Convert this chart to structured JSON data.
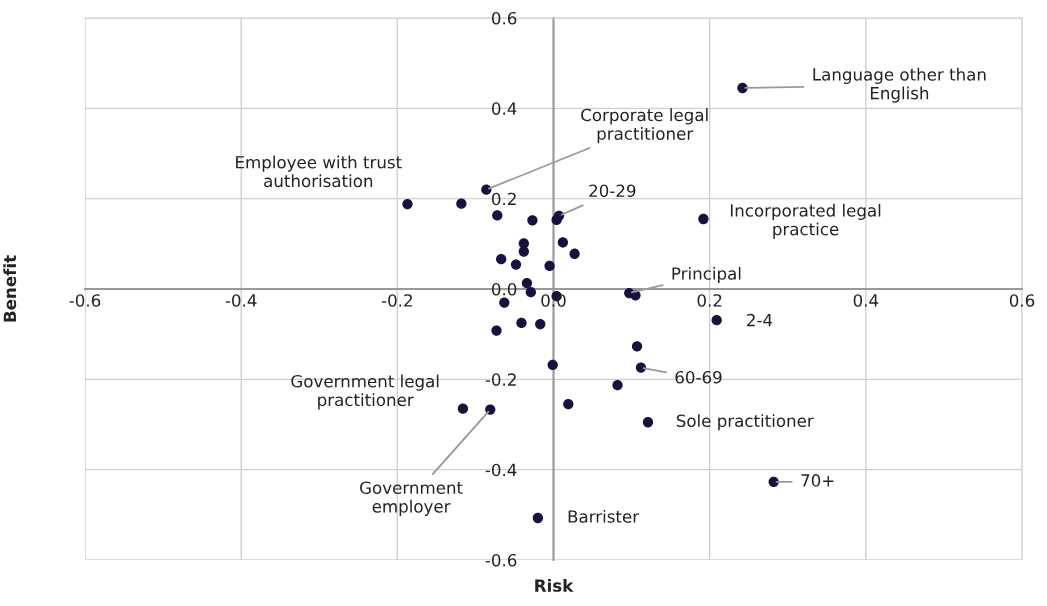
{
  "chart_data": {
    "type": "scatter",
    "xlabel": "Risk",
    "ylabel": "Benefit",
    "xlim": [
      -0.6,
      0.6
    ],
    "ylim": [
      -0.6,
      0.6
    ],
    "xticks": [
      -0.6,
      -0.4,
      -0.2,
      {
        "value": 0,
        "label": "0.0"
      },
      0.2,
      0.4,
      0.6
    ],
    "yticks": [
      -0.6,
      -0.4,
      -0.2,
      {
        "value": 0,
        "label": "0.0"
      },
      0.2,
      0.4,
      0.6
    ],
    "grid": true,
    "marker": "circle",
    "series": [
      {
        "color": "#1a1040",
        "x": [
          -0.086,
          -0.187,
          -0.118,
          -0.072,
          -0.027,
          0.007,
          0.004,
          0.012,
          0.027,
          -0.038,
          -0.038,
          -0.067,
          -0.048,
          -0.005,
          -0.034,
          -0.029,
          0.004,
          -0.063,
          0.097,
          0.105,
          -0.073,
          -0.041,
          -0.017,
          0.107,
          -0.001,
          0.112,
          0.082,
          0.019,
          0.121,
          -0.116,
          -0.081,
          -0.02,
          0.242,
          0.192,
          0.209,
          0.282
        ],
        "values": [
          0.22,
          0.188,
          0.189,
          0.163,
          0.152,
          0.162,
          0.153,
          0.103,
          0.078,
          0.101,
          0.083,
          0.066,
          0.054,
          0.051,
          0.013,
          -0.007,
          -0.016,
          -0.03,
          -0.009,
          -0.014,
          -0.092,
          -0.075,
          -0.078,
          -0.127,
          -0.168,
          -0.174,
          -0.213,
          -0.255,
          -0.295,
          -0.265,
          -0.267,
          -0.507,
          0.445,
          0.155,
          -0.069,
          -0.427
        ]
      }
    ],
    "annotations": [
      {
        "text": "Language other than\nEnglish",
        "x": 0.242,
        "y": 0.445
      },
      {
        "text": "Corporate legal\npractitioner",
        "x": -0.086,
        "y": 0.22
      },
      "Employee with trust\nauthorisation",
      {
        "text": "20-29",
        "x": 0.007,
        "y": 0.162
      },
      "Incorporated legal\npractice",
      {
        "text": "Principal",
        "x": 0.097,
        "y": -0.009
      },
      {
        "text": "2-4",
        "x": 0.209,
        "y": -0.069
      },
      {
        "text": "60-69",
        "x": 0.112,
        "y": -0.174
      },
      "Government legal\npractitioner",
      {
        "text": "Sole practitioner",
        "x": 0.121,
        "y": -0.295
      },
      {
        "text": "Government\nemployer",
        "x": -0.081,
        "y": -0.267
      },
      {
        "text": "70+",
        "x": 0.282,
        "y": -0.427
      },
      {
        "text": "Barrister",
        "x": -0.02,
        "y": -0.507
      }
    ]
  }
}
